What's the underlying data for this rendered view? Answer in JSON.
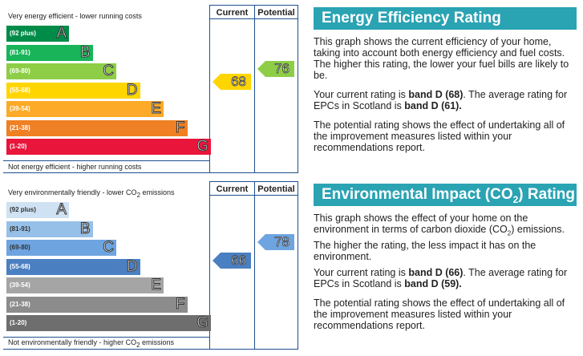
{
  "energy": {
    "top_text": "Very energy efficient - lower running costs",
    "bottom_text": "Not energy efficient - higher running costs",
    "current_header": "Current",
    "potential_header": "Potential",
    "bands": [
      {
        "range": "(92 plus)",
        "letter": "A",
        "color": "#008c48"
      },
      {
        "range": "(81-91)",
        "letter": "B",
        "color": "#19b459"
      },
      {
        "range": "(69-80)",
        "letter": "C",
        "color": "#8dce46"
      },
      {
        "range": "(55-68)",
        "letter": "D",
        "color": "#ffd500"
      },
      {
        "range": "(39-54)",
        "letter": "E",
        "color": "#fcaa27"
      },
      {
        "range": "(21-38)",
        "letter": "F",
        "color": "#ef8023"
      },
      {
        "range": "(1-20)",
        "letter": "G",
        "color": "#e9153b"
      }
    ],
    "current": {
      "value": "68",
      "color": "#ffd500"
    },
    "potential": {
      "value": "76",
      "color": "#8dce46"
    }
  },
  "environment": {
    "top_text_a": "Very environmentally friendly - lower CO",
    "top_text_sub": "2",
    "top_text_b": " emissions",
    "bottom_text_a": "Not environmentally friendly - higher CO",
    "bottom_text_sub": "2",
    "bottom_text_b": " emissions",
    "current_header": "Current",
    "potential_header": "Potential",
    "bands": [
      {
        "range": "(92 plus)",
        "letter": "A",
        "color": "#cfe2f3"
      },
      {
        "range": "(81-91)",
        "letter": "B",
        "color": "#97c0e8"
      },
      {
        "range": "(69-80)",
        "letter": "C",
        "color": "#6ea4e0"
      },
      {
        "range": "(55-68)",
        "letter": "D",
        "color": "#4a7fc1"
      },
      {
        "range": "(39-54)",
        "letter": "E",
        "color": "#a5a5a5"
      },
      {
        "range": "(21-38)",
        "letter": "F",
        "color": "#8c8c8c"
      },
      {
        "range": "(1-20)",
        "letter": "G",
        "color": "#6e6e6e"
      }
    ],
    "current": {
      "value": "66",
      "color": "#4a7fc1"
    },
    "potential": {
      "value": "78",
      "color": "#6ea4e0"
    }
  },
  "energy_panel": {
    "title": "Energy Efficiency Rating",
    "p1": "This graph shows the current efficiency of your home, taking into account both energy efficiency and fuel costs. The higher this rating, the lower your fuel bills are likely to be.",
    "p2_a": "Your current rating is ",
    "p2_b": "band D (68)",
    "p2_c": ". The average rating for EPCs in Scotland is ",
    "p2_d": "band D (61).",
    "p3": "The potential rating shows the effect of undertaking all of the improvement measures listed within your recommendations report."
  },
  "env_panel": {
    "title_a": "Environmental Impact (CO",
    "title_sub": "2",
    "title_b": ") Rating",
    "p1_a": "This graph shows the effect of your home on the environment in terms of carbon dioxide (CO",
    "p1_sub": "2",
    "p1_b": ") emissions. The higher the rating, the less impact it has on the environment.",
    "p2_a": "Your current rating is ",
    "p2_b": "band D (66)",
    "p2_c": ". The average rating for EPCs in Scotland is ",
    "p2_d": "band D (59).",
    "p3": "The potential rating shows the effect of undertaking all of the improvement measures listed within your recommendations report."
  }
}
